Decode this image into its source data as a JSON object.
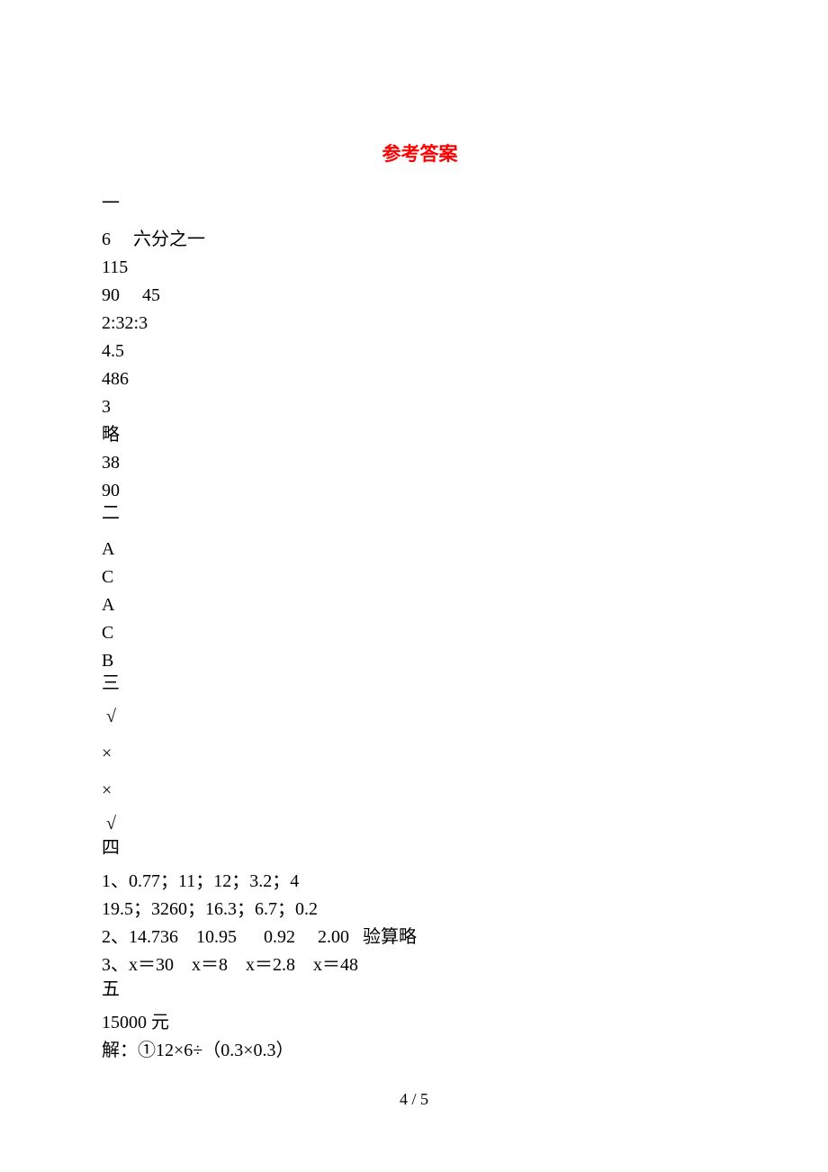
{
  "title": "参考答案",
  "title_color": "#ff0000",
  "title_fontsize": 21,
  "title_fontweight": "bold",
  "body_font": "SimSun",
  "body_fontsize": 20,
  "line_height": 31,
  "page_bg": "#ffffff",
  "text_color": "#000000",
  "page_number": "4 / 5",
  "lines": [
    "一",
    "6     六分之一",
    "115",
    "90     45",
    "2:32:3",
    "4.5",
    "486",
    "3",
    "略",
    "38",
    "90",
    "二",
    "A",
    "C",
    "A",
    "C",
    "B",
    "三",
    " √",
    "×",
    "×",
    " √",
    "四",
    "1、0.77；11；12；3.2；4",
    "19.5；3260；16.3；6.7；0.2",
    "2、14.736    10.95      0.92     2.00   验算略",
    "3、x＝30    x＝8    x＝2.8    x＝48",
    "五",
    "15000 元",
    "解：①12×6÷（0.3×0.3）"
  ],
  "line_spacing": {
    "default": 31,
    "loose": 40,
    "tight": 23
  },
  "line_style_map": [
    {
      "idx": 0,
      "mb": 9
    },
    {
      "idx": 11,
      "mt": -6,
      "mb": 9
    },
    {
      "idx": 17,
      "mt": -6,
      "mb": 6
    },
    {
      "idx": 18,
      "mb": 10
    },
    {
      "idx": 19,
      "mb": 10
    },
    {
      "idx": 20,
      "mb": 6
    },
    {
      "idx": 21,
      "mb": 0
    },
    {
      "idx": 22,
      "mt": -4,
      "mb": 6
    },
    {
      "idx": 26,
      "mb": -4
    },
    {
      "idx": 27,
      "mb": 6
    }
  ]
}
